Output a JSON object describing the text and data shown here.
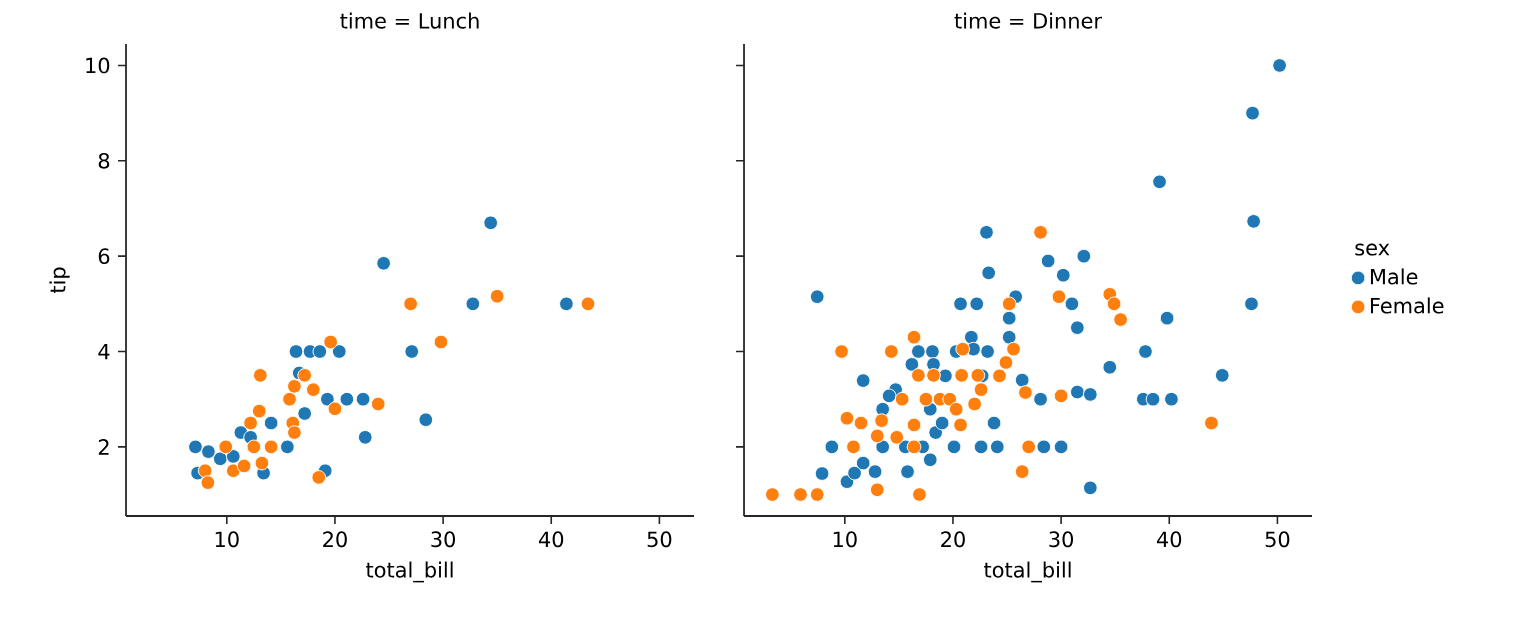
{
  "chart_data": [
    {
      "type": "scatter",
      "title": "time = Lunch",
      "xlabel": "total_bill",
      "ylabel": "tip",
      "marker": "circle",
      "legend": false,
      "xlim": [
        0.68,
        53.2
      ],
      "ylim": [
        0.55,
        10.45
      ],
      "xticks": [
        10,
        20,
        30,
        40,
        50
      ],
      "yticks": [
        2,
        4,
        6,
        8,
        10
      ],
      "series": [
        {
          "color": "#1f77b4",
          "x": [
            7.1,
            7.3,
            8.3,
            9.4,
            11.3,
            12.2,
            13.4,
            14.1,
            15.6,
            16.4,
            16.7,
            17.2,
            17.7,
            18.6,
            20.4,
            19.3,
            21.1,
            22.6,
            22.8,
            19.1,
            24.5,
            27.1,
            28.4,
            32.75,
            34.4,
            41.4,
            10.6
          ],
          "values": [
            2.0,
            1.45,
            1.9,
            1.75,
            2.3,
            2.2,
            1.45,
            2.5,
            2.0,
            4.0,
            3.55,
            2.7,
            4.0,
            4.0,
            4.0,
            3.0,
            3.0,
            3.0,
            2.2,
            1.5,
            5.85,
            4.0,
            2.57,
            5.0,
            6.7,
            5.0,
            1.8
          ]
        },
        {
          "color": "#ff7f0e",
          "x": [
            8.0,
            8.25,
            9.9,
            10.6,
            11.6,
            12.5,
            12.2,
            13.0,
            13.1,
            13.25,
            14.1,
            15.8,
            16.1,
            16.25,
            17.2,
            18.0,
            19.6,
            20.0,
            24.0,
            18.5,
            27.0,
            29.8,
            35.0,
            43.4,
            16.25
          ],
          "values": [
            1.5,
            1.25,
            2.0,
            1.5,
            1.6,
            2.0,
            2.5,
            2.75,
            3.5,
            1.66,
            2.0,
            3.0,
            2.5,
            3.27,
            3.5,
            3.2,
            4.2,
            2.8,
            2.9,
            1.36,
            5.0,
            4.2,
            5.16,
            5.0,
            2.3
          ]
        }
      ]
    },
    {
      "type": "scatter",
      "title": "time = Dinner",
      "xlabel": "total_bill",
      "legend_title": "sex",
      "marker": "circle",
      "legend": "right",
      "tick_labels": "x",
      "xlim": [
        0.68,
        53.2
      ],
      "ylim": [
        0.55,
        10.45
      ],
      "xticks": [
        10,
        20,
        30,
        40,
        50
      ],
      "yticks": [
        2,
        4,
        6,
        8,
        10
      ],
      "series": [
        {
          "name": "Male",
          "color": "#1f77b4",
          "x": [
            50.2,
            47.7,
            39.1,
            47.8,
            47.6,
            39.8,
            44.9,
            37.8,
            37.6,
            38.5,
            40.2,
            34.5,
            32.7,
            32.1,
            30.2,
            28.8,
            23.1,
            23.3,
            25.8,
            20.7,
            22.2,
            25.2,
            31.0,
            31.5,
            23.2,
            21.7,
            25.2,
            26.4,
            28.1,
            31.5,
            32.7,
            28.4,
            30.0,
            23.8,
            22.6,
            24.1,
            20.1,
            17.9,
            15.8,
            12.8,
            10.2,
            7.9,
            8.8,
            11.7,
            7.45,
            13.5,
            14.7,
            16.2,
            16.8,
            18.1,
            18.2,
            19.3,
            20.3,
            17.9,
            18.4,
            13.5,
            14.1,
            15.6,
            10.9,
            11.7,
            17.2,
            19.0,
            21.9,
            22.7
          ],
          "values": [
            10.0,
            9.0,
            7.56,
            6.73,
            5.0,
            4.7,
            3.5,
            4.0,
            3.0,
            3.0,
            3.0,
            3.67,
            1.14,
            6.0,
            5.6,
            5.9,
            6.5,
            5.65,
            5.15,
            5.0,
            5.0,
            4.7,
            5.0,
            4.5,
            4.0,
            4.3,
            4.3,
            3.4,
            3.0,
            3.15,
            3.1,
            2.0,
            2.0,
            2.5,
            2.0,
            2.0,
            2.0,
            1.73,
            1.48,
            1.48,
            1.27,
            1.44,
            2.0,
            3.39,
            5.15,
            2.0,
            3.2,
            3.73,
            4.0,
            4.0,
            3.73,
            3.49,
            4.0,
            2.79,
            2.3,
            2.79,
            3.07,
            2.0,
            1.45,
            1.66,
            2.0,
            2.5,
            4.05,
            3.49
          ]
        },
        {
          "name": "Female",
          "color": "#ff7f0e",
          "x": [
            3.3,
            5.9,
            7.45,
            16.9,
            13.0,
            9.7,
            14.3,
            16.4,
            10.2,
            10.8,
            11.5,
            13.0,
            13.4,
            14.8,
            15.3,
            16.4,
            16.4,
            16.8,
            17.5,
            18.2,
            18.8,
            19.7,
            20.3,
            20.7,
            20.8,
            20.9,
            22.0,
            22.3,
            22.6,
            24.3,
            24.9,
            25.6,
            25.2,
            26.7,
            27.0,
            26.4,
            28.1,
            29.8,
            30.0,
            34.5,
            34.9,
            35.5,
            43.9
          ],
          "values": [
            1.0,
            1.0,
            1.0,
            1.0,
            1.1,
            4.0,
            4.0,
            4.3,
            2.6,
            2.0,
            2.5,
            2.23,
            2.55,
            2.2,
            3.0,
            2.46,
            2.0,
            3.5,
            3.0,
            3.5,
            3.0,
            3.0,
            2.79,
            2.46,
            3.5,
            4.05,
            2.9,
            3.5,
            3.2,
            3.49,
            3.77,
            4.05,
            5.0,
            3.14,
            2.0,
            1.48,
            6.5,
            5.15,
            3.07,
            5.2,
            5.0,
            4.67,
            2.5
          ]
        }
      ]
    }
  ]
}
